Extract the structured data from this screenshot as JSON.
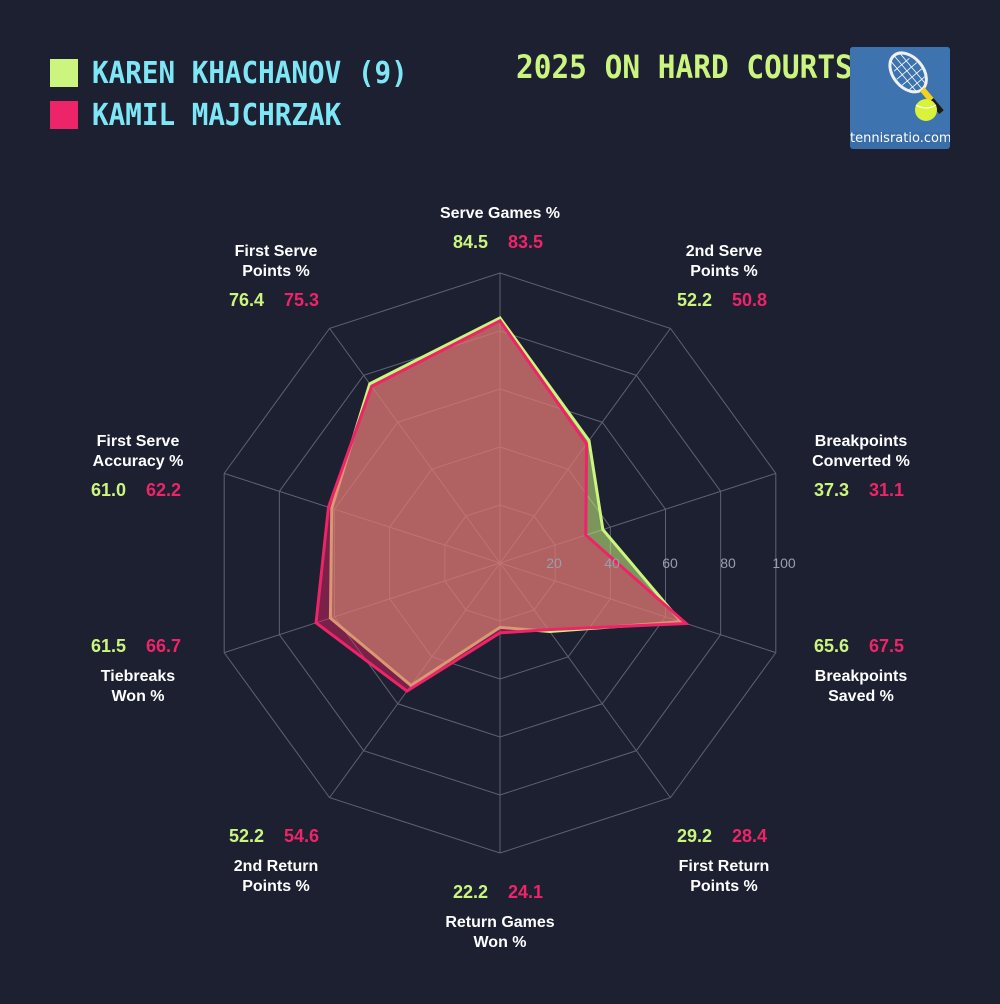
{
  "title": "2025 ON HARD COURTS",
  "logo_text": "tennisratio.com",
  "players": [
    {
      "name": "KAREN KHACHANOV (9)",
      "color": "#ccf57f"
    },
    {
      "name": "KAMIL MAJCHRZAK",
      "color": "#ee2468"
    }
  ],
  "chart_data": {
    "type": "radar",
    "rlim": [
      0,
      100
    ],
    "radial_ticks": [
      "20",
      "40",
      "60",
      "80",
      "100"
    ],
    "axes": [
      {
        "label": [
          "Serve Games %"
        ]
      },
      {
        "label": [
          "2nd Serve",
          "Points %"
        ]
      },
      {
        "label": [
          "Breakpoints",
          "Converted %"
        ]
      },
      {
        "label": [
          "Breakpoints",
          "Saved %"
        ]
      },
      {
        "label": [
          "First Return",
          "Points %"
        ]
      },
      {
        "label": [
          "Return Games",
          "Won %"
        ]
      },
      {
        "label": [
          "2nd Return",
          "Points %"
        ]
      },
      {
        "label": [
          "Tiebreaks",
          "Won %"
        ]
      },
      {
        "label": [
          "First Serve",
          "Accuracy %"
        ]
      },
      {
        "label": [
          "First Serve",
          "Points %"
        ]
      }
    ],
    "series": [
      {
        "name": "KAREN KHACHANOV (9)",
        "color": "#ccf57f",
        "values": [
          84.5,
          52.2,
          37.3,
          65.6,
          29.2,
          22.2,
          52.2,
          61.5,
          61.0,
          76.4
        ],
        "labels": [
          "84.5",
          "52.2",
          "37.3",
          "65.6",
          "29.2",
          "22.2",
          "52.2",
          "61.5",
          "61.0",
          "76.4"
        ]
      },
      {
        "name": "KAMIL MAJCHRZAK",
        "color": "#ee2468",
        "values": [
          83.5,
          50.8,
          31.1,
          67.5,
          28.4,
          24.1,
          54.6,
          66.7,
          62.2,
          75.3
        ],
        "labels": [
          "83.5",
          "50.8",
          "31.1",
          "67.5",
          "28.4",
          "24.1",
          "54.6",
          "66.7",
          "62.2",
          "75.3"
        ]
      }
    ]
  }
}
